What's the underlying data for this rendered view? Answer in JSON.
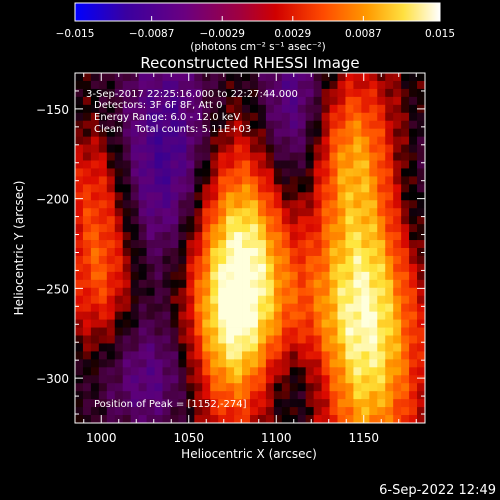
{
  "chart_data": {
    "type": "heatmap",
    "title": "Reconstructed RHESSI Image",
    "xlabel": "Heliocentric X (arcsec)",
    "ylabel": "Heliocentric Y (arcsec)",
    "xlim": [
      985,
      1185
    ],
    "ylim": [
      -325,
      -130
    ],
    "x_ticks": [
      1000,
      1050,
      1100,
      1150
    ],
    "y_ticks": [
      -150,
      -200,
      -250,
      -300
    ],
    "colorbar": {
      "range": [
        -0.015,
        0.015
      ],
      "tick_values": [
        -0.015,
        -0.0087,
        -0.0029,
        0.0029,
        0.0087,
        0.015
      ],
      "tick_labels": [
        "−0.015",
        "−0.0087",
        "−0.0029",
        "0.0029",
        "0.0087",
        "0.015"
      ],
      "units_label": "(photons cm⁻² s⁻¹ asec⁻²)",
      "colors": [
        "#0000ff",
        "#4a007a",
        "#7a0066",
        "#cc0000",
        "#ff5a00",
        "#ffb000",
        "#ffffa0",
        "#ffffff"
      ]
    },
    "annotations": {
      "line1": "3-Sep-2017 22:25:16.000 to 22:27:44.000",
      "line2": "Detectors: 3F 6F 8F, Att 0",
      "line3": "Energy Range: 6.0 - 12.0 keV",
      "line4": "Clean    Total counts: 5.11E+03",
      "peak_label": "Position of Peak = [1152,-274]"
    },
    "peak": [
      1152,
      -274
    ],
    "sources": [
      {
        "x": 1080,
        "y": -230,
        "sx": 22,
        "sy": 48,
        "amp": 0.015
      },
      {
        "x": 1073,
        "y": -285,
        "sx": 18,
        "sy": 35,
        "amp": 0.0075
      },
      {
        "x": 1150,
        "y": -268,
        "sx": 22,
        "sy": 60,
        "amp": 0.015
      },
      {
        "x": 1140,
        "y": -170,
        "sx": 18,
        "sy": 30,
        "amp": 0.007
      },
      {
        "x": 1000,
        "y": -235,
        "sx": 14,
        "sy": 35,
        "amp": 0.008
      },
      {
        "x": 995,
        "y": -185,
        "sx": 12,
        "sy": 20,
        "amp": 0.003
      },
      {
        "x": 1040,
        "y": -180,
        "sx": 22,
        "sy": 50,
        "amp": -0.009
      },
      {
        "x": 1110,
        "y": -160,
        "sx": 16,
        "sy": 45,
        "amp": -0.009
      },
      {
        "x": 1030,
        "y": -300,
        "sx": 25,
        "sy": 25,
        "amp": -0.006
      },
      {
        "x": 1180,
        "y": -200,
        "sx": 15,
        "sy": 35,
        "amp": -0.004
      },
      {
        "x": 1112,
        "y": -305,
        "sx": 18,
        "sy": 22,
        "amp": -0.005
      }
    ]
  },
  "footer": {
    "timestamp": "6-Sep-2022 12:49"
  }
}
